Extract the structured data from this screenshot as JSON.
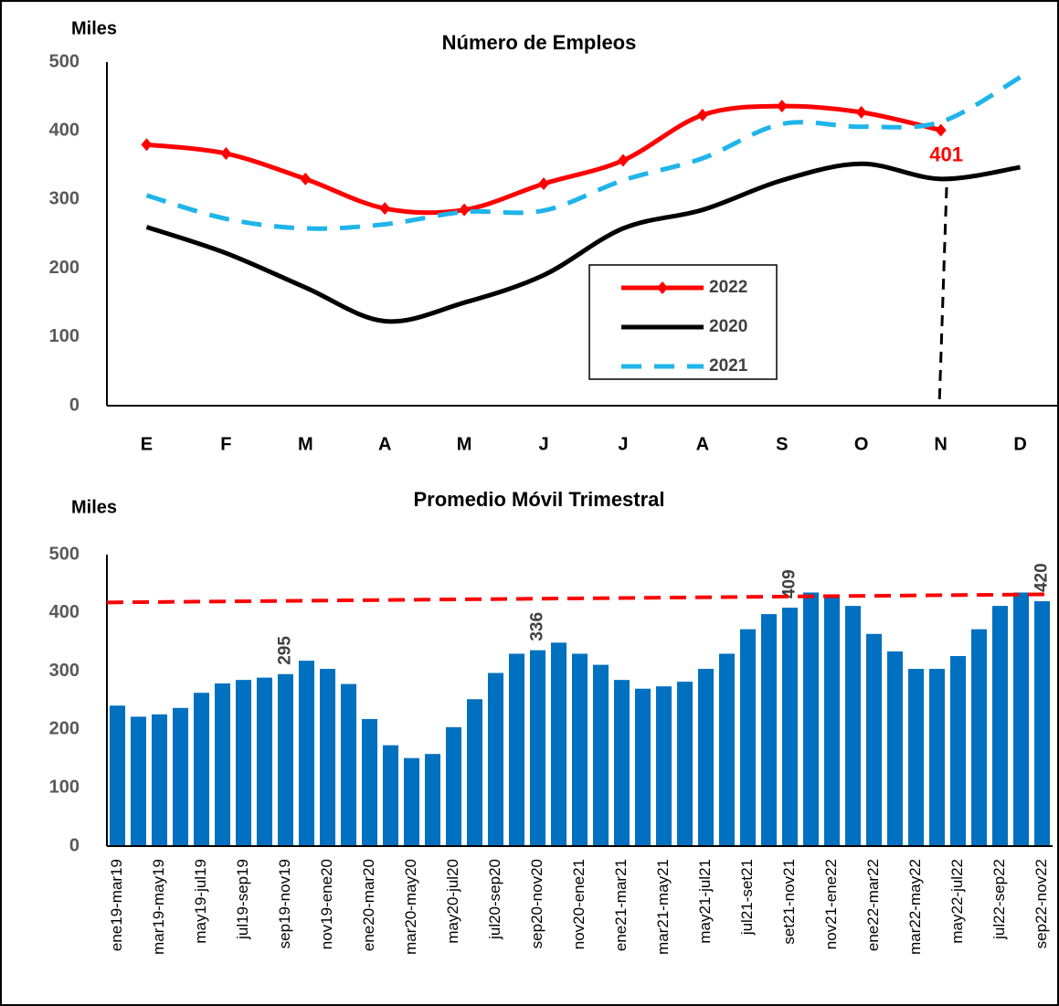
{
  "chart_data": [
    {
      "type": "line",
      "title": "Número de Empleos",
      "y_label": "Miles",
      "categories": [
        "E",
        "F",
        "M",
        "A",
        "M",
        "J",
        "J",
        "A",
        "S",
        "O",
        "N",
        "D"
      ],
      "series": [
        {
          "name": "2022",
          "color": "#ff0000",
          "dash": false,
          "markers": true,
          "values": [
            380,
            367,
            330,
            287,
            285,
            323,
            357,
            423,
            436,
            427,
            401,
            null
          ],
          "value_labels": [
            null,
            null,
            null,
            null,
            null,
            null,
            null,
            null,
            null,
            null,
            "401",
            null
          ]
        },
        {
          "name": "2020",
          "color": "#000000",
          "dash": false,
          "markers": false,
          "values": [
            260,
            222,
            172,
            123,
            150,
            190,
            258,
            285,
            328,
            352,
            330,
            347
          ]
        },
        {
          "name": "2021",
          "color": "#1fb4ea",
          "dash": true,
          "markers": false,
          "values": [
            306,
            272,
            258,
            264,
            282,
            284,
            328,
            360,
            410,
            406,
            413,
            478
          ]
        }
      ],
      "ylim": [
        0,
        500
      ],
      "yticks": [
        0,
        100,
        200,
        300,
        400,
        500
      ],
      "grid": false,
      "legend": "inside"
    },
    {
      "type": "bar",
      "title": "Promedio Móvil Trimestral",
      "y_label": "Miles",
      "categories": [
        "ene19-mar19",
        null,
        "mar19-may19",
        null,
        "may19-jul19",
        null,
        "jul19-sep19",
        null,
        "sep19-nov19",
        null,
        "nov19-ene20",
        null,
        "ene20-mar20",
        null,
        "mar20-may20",
        null,
        "may20-jul20",
        null,
        "jul20-sep20",
        null,
        "sep20-nov20",
        null,
        "nov20-ene21",
        null,
        "ene21-mar21",
        null,
        "mar21-may21",
        null,
        "may21-jul21",
        null,
        "jul21-set21",
        null,
        "set21-nov21",
        null,
        "nov21-ene22",
        null,
        "ene22-mar22",
        null,
        "mar22-may22",
        null,
        "may22-jul22",
        null,
        "jul22-sep22",
        null,
        "sep22-nov22"
      ],
      "color": "#0070c0",
      "values": [
        241,
        222,
        226,
        237,
        263,
        279,
        285,
        289,
        295,
        318,
        304,
        278,
        218,
        173,
        151,
        158,
        204,
        252,
        297,
        330,
        336,
        349,
        330,
        311,
        285,
        270,
        274,
        282,
        304,
        330,
        372,
        398,
        409,
        435,
        428,
        412,
        364,
        334,
        304,
        304,
        326,
        372,
        412,
        435,
        420
      ],
      "value_labels": [
        null,
        null,
        null,
        null,
        null,
        null,
        null,
        null,
        "295",
        null,
        null,
        null,
        null,
        null,
        null,
        null,
        null,
        null,
        null,
        null,
        "336",
        null,
        null,
        null,
        null,
        null,
        null,
        null,
        null,
        null,
        null,
        null,
        "409",
        null,
        null,
        null,
        null,
        null,
        null,
        null,
        null,
        null,
        null,
        null,
        "420"
      ],
      "trendline": {
        "color": "#ff0000",
        "values": [
          418,
          432
        ]
      },
      "ylim": [
        0,
        500
      ],
      "yticks": [
        0,
        100,
        200,
        300,
        400,
        500
      ],
      "grid": false
    }
  ]
}
